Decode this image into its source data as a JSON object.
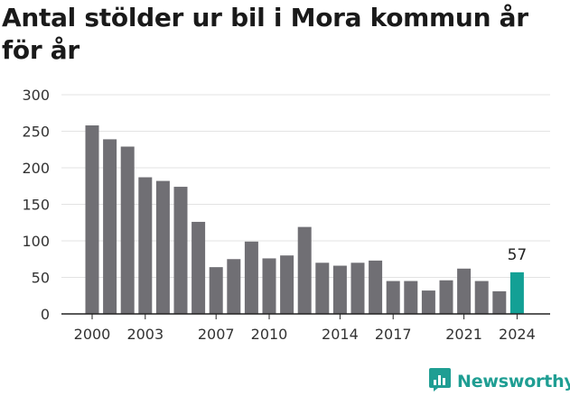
{
  "chart_data": {
    "type": "bar",
    "title": "Antal stölder ur bil i Mora kommun år för år",
    "xlabel": "",
    "ylabel": "",
    "categories": [
      "2000",
      "2001",
      "2002",
      "2003",
      "2004",
      "2005",
      "2006",
      "2007",
      "2008",
      "2009",
      "2010",
      "2011",
      "2012",
      "2013",
      "2014",
      "2015",
      "2016",
      "2017",
      "2018",
      "2019",
      "2020",
      "2021",
      "2022",
      "2023",
      "2024"
    ],
    "values": [
      258,
      239,
      229,
      187,
      182,
      174,
      126,
      64,
      75,
      99,
      76,
      80,
      119,
      70,
      66,
      70,
      73,
      45,
      45,
      32,
      46,
      62,
      45,
      31,
      57
    ],
    "x_tick_labels": [
      "2000",
      "2003",
      "2007",
      "2010",
      "2014",
      "2017",
      "2021",
      "2024"
    ],
    "y_ticks": [
      0,
      50,
      100,
      150,
      200,
      250,
      300
    ],
    "ylim": [
      0,
      300
    ],
    "grid": true,
    "legend": "none",
    "highlight": {
      "category": "2024",
      "label": "57"
    },
    "colors": {
      "bar": "#706f74",
      "highlight": "#13a095",
      "grid": "#e3e3e3",
      "axis": "#222222"
    }
  },
  "brand": {
    "name": "Newsworthy",
    "icon": "newsworthy-logo-icon",
    "color": "#1f9e93"
  }
}
